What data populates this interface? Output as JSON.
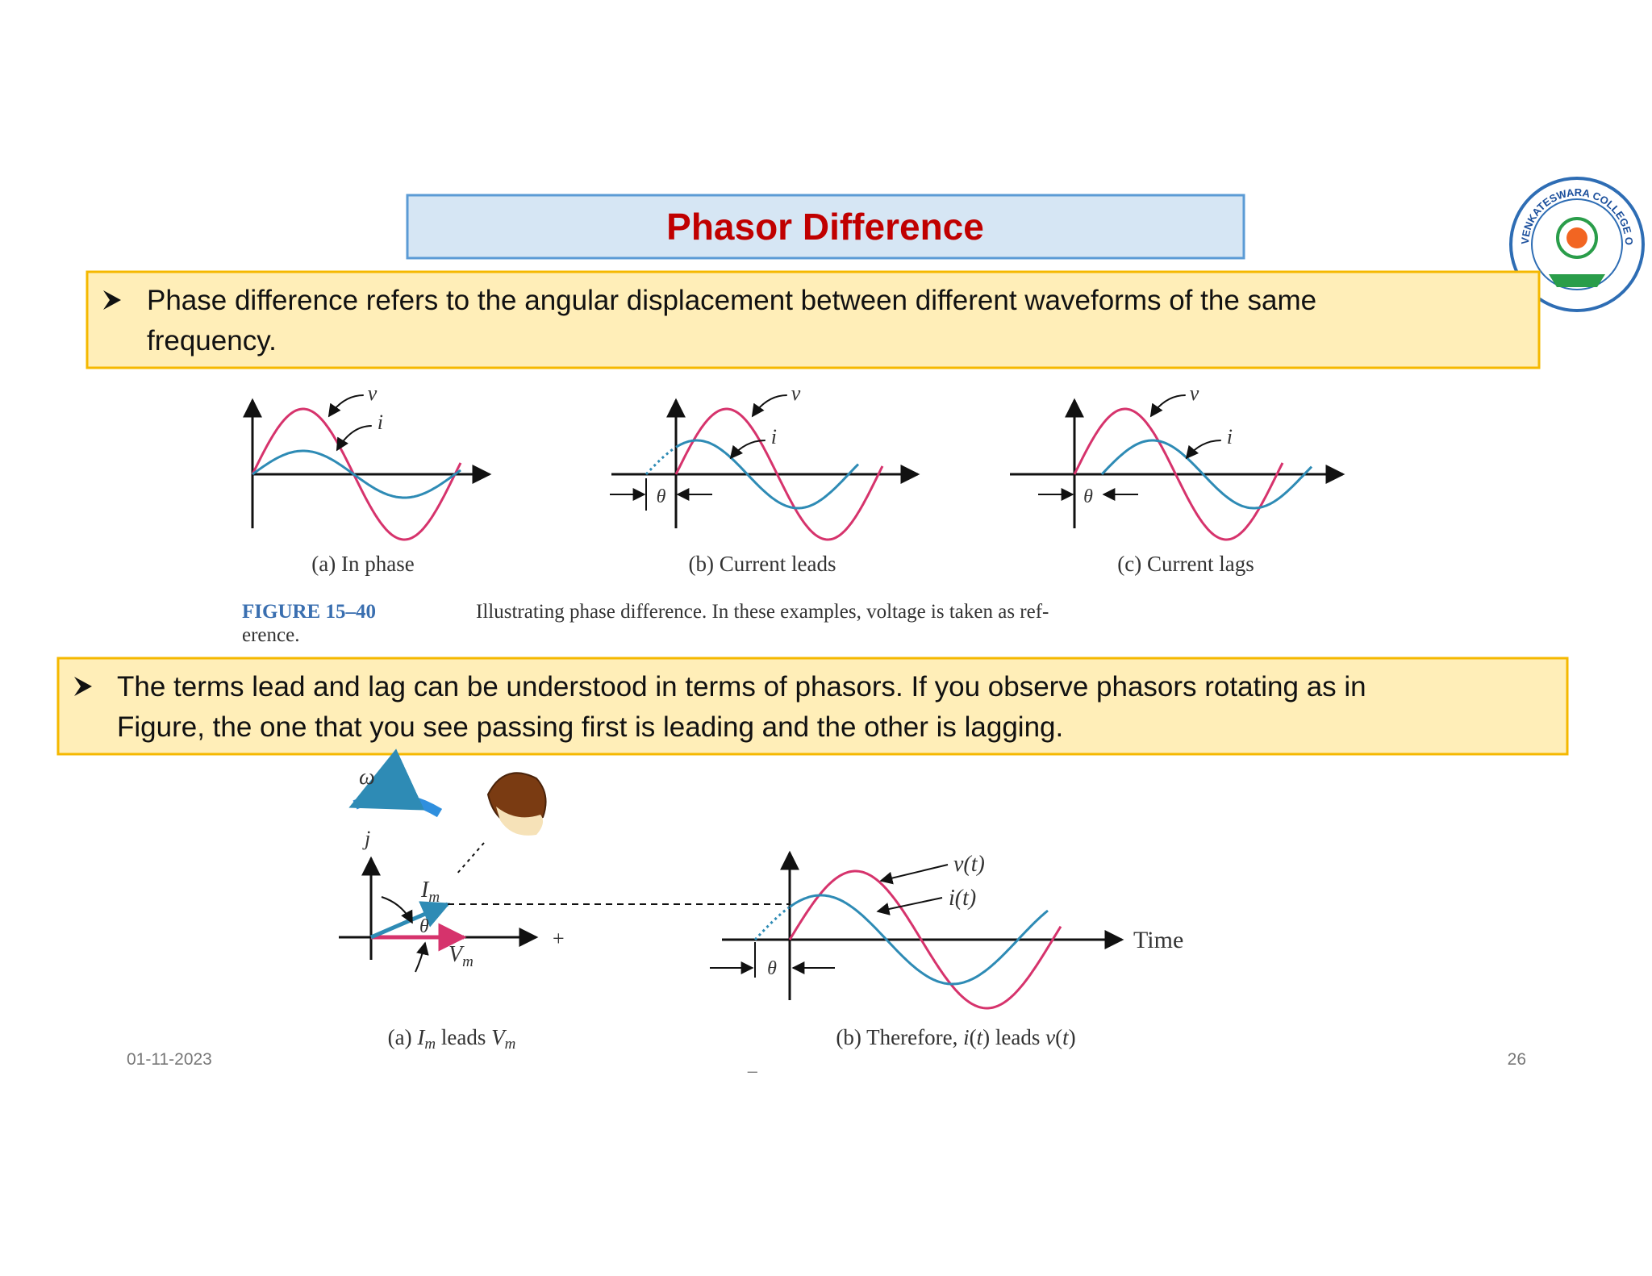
{
  "header": {
    "title": "Phasor Difference"
  },
  "logo": {
    "text": "VENKATESWARA COLLEGE OF ENGINEERING"
  },
  "bullets": [
    {
      "lines": [
        "Phase difference refers to the angular displacement between different waveforms of the same",
        "frequency."
      ]
    },
    {
      "lines": [
        "The terms lead and lag can be understood in terms of phasors. If you observe phasors rotating as in",
        "Figure, the one that you see passing first is leading and the other is lagging."
      ]
    }
  ],
  "figure1": {
    "panels": [
      {
        "caption": "(a) In phase",
        "v": "v",
        "i": "i"
      },
      {
        "caption": "(b) Current leads",
        "v": "v",
        "i": "i",
        "theta": "θ"
      },
      {
        "caption": "(c) Current lags",
        "v": "v",
        "i": "i",
        "theta": "θ"
      }
    ],
    "label": "FIGURE 15–40",
    "caption_lines": [
      "Illustrating phase difference. In these examples, voltage is taken as ref-",
      "erence."
    ]
  },
  "figure2": {
    "omega": "ω",
    "j": "j",
    "im": [
      "I",
      "m"
    ],
    "vm": [
      "V",
      "m"
    ],
    "theta": "θ",
    "plus": "+",
    "vt": "v(t)",
    "it": "i(t)",
    "time": "Time",
    "caption_a": [
      "(a) ",
      "I",
      "m",
      " leads ",
      "V",
      "m"
    ],
    "caption_b": [
      "(b) Therefore, ",
      "i",
      "(",
      "t",
      ") leads ",
      "v",
      "(",
      "t",
      ")"
    ]
  },
  "footer": {
    "date": "01-11-2023",
    "mark": "_",
    "page": "26"
  }
}
